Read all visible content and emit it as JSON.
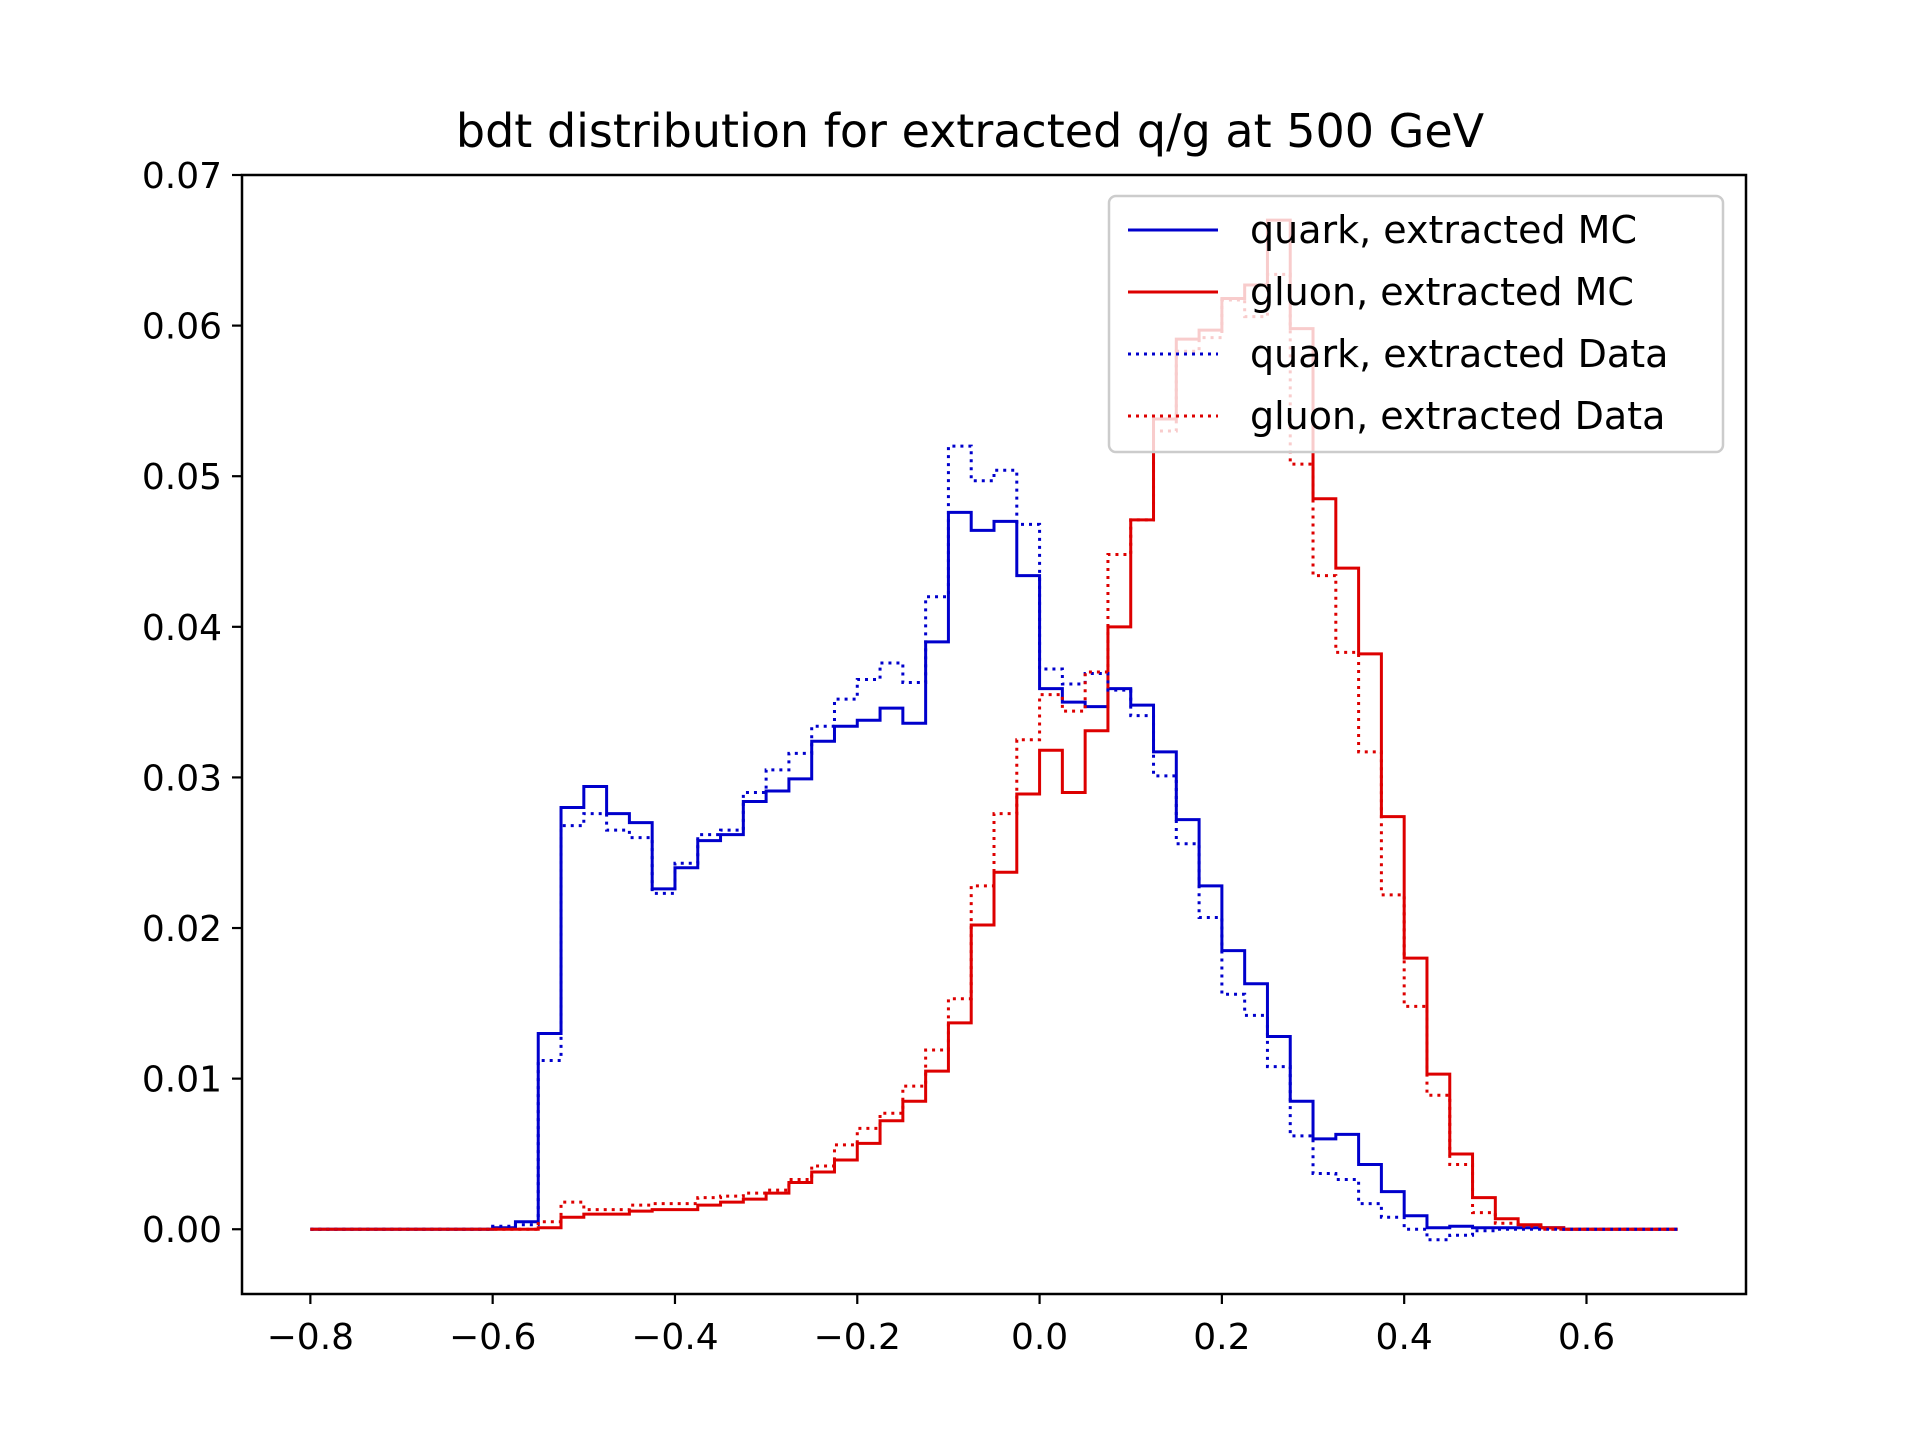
{
  "chart_data": {
    "type": "line",
    "step": true,
    "title": "bdt distribution for extracted q/g at 500 GeV",
    "xlabel": "",
    "ylabel": "",
    "xlim": [
      -0.875,
      0.775
    ],
    "ylim": [
      -0.0043,
      0.07
    ],
    "x_ticks": [
      -0.8,
      -0.6,
      -0.4,
      -0.2,
      0.0,
      0.2,
      0.4,
      0.6
    ],
    "x_tick_labels": [
      "−0.8",
      "−0.6",
      "−0.4",
      "−0.2",
      "0.0",
      "0.2",
      "0.4",
      "0.6"
    ],
    "y_ticks": [
      0.0,
      0.01,
      0.02,
      0.03,
      0.04,
      0.05,
      0.06,
      0.07
    ],
    "y_tick_labels": [
      "0.00",
      "0.01",
      "0.02",
      "0.03",
      "0.04",
      "0.05",
      "0.06",
      "0.07"
    ],
    "grid": false,
    "legend_position": "upper right",
    "bin_edges": [
      -0.8,
      -0.775,
      -0.75,
      -0.725,
      -0.7,
      -0.675,
      -0.65,
      -0.625,
      -0.6,
      -0.575,
      -0.55,
      -0.525,
      -0.5,
      -0.475,
      -0.45,
      -0.425,
      -0.4,
      -0.375,
      -0.35,
      -0.325,
      -0.3,
      -0.275,
      -0.25,
      -0.225,
      -0.2,
      -0.175,
      -0.15,
      -0.125,
      -0.1,
      -0.075,
      -0.05,
      -0.025,
      0.0,
      0.025,
      0.05,
      0.075,
      0.1,
      0.125,
      0.15,
      0.175,
      0.2,
      0.225,
      0.25,
      0.275,
      0.3,
      0.325,
      0.35,
      0.375,
      0.4,
      0.425,
      0.45,
      0.475,
      0.5,
      0.525,
      0.55,
      0.575,
      0.6,
      0.625,
      0.65,
      0.675,
      0.7
    ],
    "series": [
      {
        "name": "quark, extracted MC",
        "color": "#0000cc",
        "style": "solid",
        "values": [
          0,
          0,
          0,
          0,
          0,
          0,
          0,
          0,
          0.0001,
          0.0005,
          0.013,
          0.028,
          0.0294,
          0.0276,
          0.027,
          0.0226,
          0.024,
          0.0258,
          0.0262,
          0.0284,
          0.0291,
          0.0299,
          0.0324,
          0.0334,
          0.0338,
          0.0346,
          0.0336,
          0.039,
          0.0476,
          0.0464,
          0.047,
          0.0434,
          0.0359,
          0.035,
          0.0347,
          0.0359,
          0.0348,
          0.0317,
          0.0272,
          0.0228,
          0.0185,
          0.0163,
          0.0128,
          0.0085,
          0.006,
          0.0063,
          0.0043,
          0.0025,
          0.0009,
          0.0001,
          0.0002,
          0.0001,
          0.0001,
          0.0001,
          0.0001,
          0,
          0,
          0,
          0,
          0
        ]
      },
      {
        "name": "gluon, extracted MC",
        "color": "#dd0000",
        "style": "solid",
        "values": [
          0,
          0,
          0,
          0,
          0,
          0,
          0,
          0,
          0,
          0,
          0.0001,
          0.0008,
          0.001,
          0.001,
          0.0012,
          0.0013,
          0.0013,
          0.0016,
          0.0018,
          0.002,
          0.0024,
          0.0031,
          0.0038,
          0.0046,
          0.0057,
          0.0072,
          0.0085,
          0.0105,
          0.0137,
          0.0202,
          0.0237,
          0.0289,
          0.0318,
          0.029,
          0.0331,
          0.04,
          0.0471,
          0.0538,
          0.0591,
          0.0597,
          0.0618,
          0.0627,
          0.067,
          0.0598,
          0.0485,
          0.0439,
          0.0382,
          0.0274,
          0.018,
          0.0103,
          0.005,
          0.0021,
          0.0007,
          0.0003,
          0.0001,
          0,
          0,
          0,
          0,
          0
        ]
      },
      {
        "name": "quark, extracted Data",
        "color": "#0000cc",
        "style": "dotted",
        "values": [
          0,
          0,
          0,
          0,
          0,
          0,
          0,
          0,
          0.0002,
          0.0003,
          0.0112,
          0.0268,
          0.0276,
          0.0265,
          0.026,
          0.0223,
          0.0243,
          0.0262,
          0.0265,
          0.029,
          0.0305,
          0.0316,
          0.0334,
          0.0352,
          0.0365,
          0.0376,
          0.0363,
          0.042,
          0.052,
          0.0497,
          0.0504,
          0.0468,
          0.0372,
          0.0362,
          0.0369,
          0.0358,
          0.0341,
          0.0301,
          0.0256,
          0.0207,
          0.0156,
          0.0142,
          0.0108,
          0.0062,
          0.0037,
          0.0033,
          0.0017,
          0.0008,
          0.0,
          -0.0007,
          -0.0004,
          -0.0001,
          0,
          0,
          0,
          0,
          0,
          0,
          0,
          0
        ]
      },
      {
        "name": "gluon, extracted Data",
        "color": "#dd0000",
        "style": "dotted",
        "values": [
          0,
          0,
          0,
          0,
          0,
          0,
          0,
          0,
          0,
          0,
          0.0005,
          0.0018,
          0.0013,
          0.0013,
          0.0016,
          0.0017,
          0.0017,
          0.0021,
          0.0022,
          0.0024,
          0.0026,
          0.0033,
          0.0042,
          0.0056,
          0.0067,
          0.0077,
          0.0095,
          0.0119,
          0.0153,
          0.0228,
          0.0276,
          0.0325,
          0.0355,
          0.0344,
          0.037,
          0.0448,
          0.0471,
          0.053,
          0.0583,
          0.0592,
          0.0617,
          0.0606,
          0.0634,
          0.0508,
          0.0434,
          0.0383,
          0.0317,
          0.0222,
          0.0148,
          0.0089,
          0.0043,
          0.0011,
          0.0004,
          0.0002,
          0,
          0,
          0,
          0,
          0,
          0
        ]
      }
    ]
  }
}
